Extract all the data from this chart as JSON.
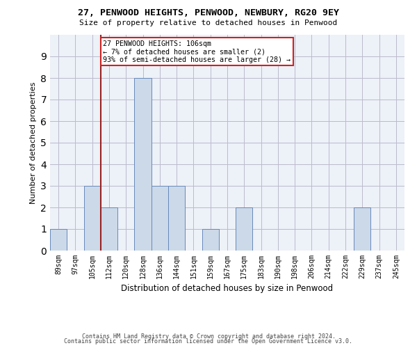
{
  "title1": "27, PENWOOD HEIGHTS, PENWOOD, NEWBURY, RG20 9EY",
  "title2": "Size of property relative to detached houses in Penwood",
  "xlabel": "Distribution of detached houses by size in Penwood",
  "ylabel": "Number of detached properties",
  "footer1": "Contains HM Land Registry data © Crown copyright and database right 2024.",
  "footer2": "Contains public sector information licensed under the Open Government Licence v3.0.",
  "categories": [
    "89sqm",
    "97sqm",
    "105sqm",
    "112sqm",
    "120sqm",
    "128sqm",
    "136sqm",
    "144sqm",
    "151sqm",
    "159sqm",
    "167sqm",
    "175sqm",
    "183sqm",
    "190sqm",
    "198sqm",
    "206sqm",
    "214sqm",
    "222sqm",
    "229sqm",
    "237sqm",
    "245sqm"
  ],
  "values": [
    1,
    0,
    3,
    2,
    0,
    8,
    3,
    3,
    0,
    1,
    0,
    2,
    0,
    0,
    0,
    0,
    0,
    0,
    2,
    0,
    0
  ],
  "bar_color": "#ccd9e8",
  "bar_edge_color": "#6688bb",
  "grid_color": "#bbbbcc",
  "bg_color": "#edf1f8",
  "vline_color": "#992222",
  "annotation_text": "27 PENWOOD HEIGHTS: 106sqm\n← 7% of detached houses are smaller (2)\n93% of semi-detached houses are larger (28) →",
  "annotation_box_color": "#cc2222",
  "ylim": [
    0,
    10
  ],
  "yticks": [
    0,
    1,
    2,
    3,
    4,
    5,
    6,
    7,
    8,
    9,
    10
  ],
  "vline_index": 3
}
